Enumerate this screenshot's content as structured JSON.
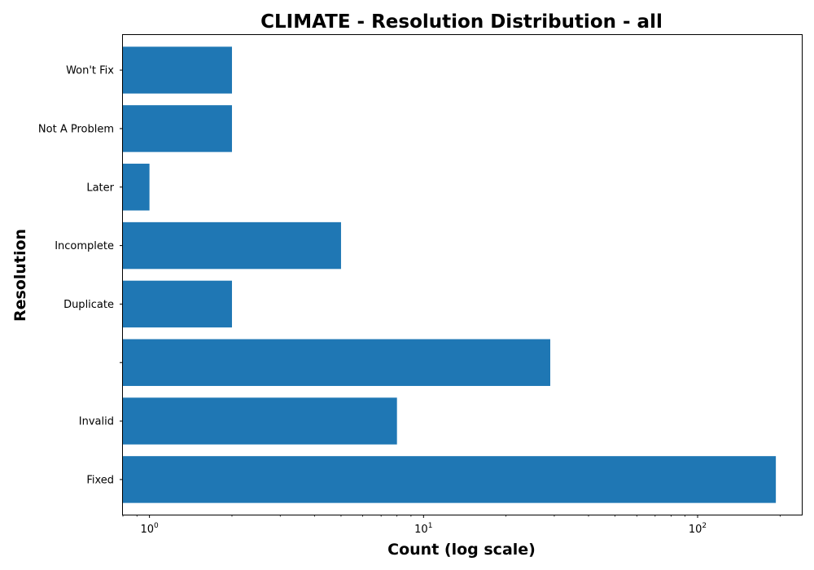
{
  "chart_data": {
    "type": "bar",
    "orientation": "horizontal",
    "title": "CLIMATE - Resolution Distribution - all",
    "xlabel": "Count (log scale)",
    "ylabel": "Resolution",
    "x_scale": "log",
    "xlim": [
      0.8,
      240
    ],
    "x_ticks": [
      {
        "value": 1,
        "base": "10",
        "exp": "0"
      },
      {
        "value": 10,
        "base": "10",
        "exp": "1"
      },
      {
        "value": 100,
        "base": "10",
        "exp": "2"
      }
    ],
    "categories": [
      "Fixed",
      "Invalid",
      "",
      "Duplicate",
      "Incomplete",
      "Later",
      "Not A Problem",
      "Won't Fix"
    ],
    "values": [
      193,
      8,
      29,
      2,
      5,
      1,
      2,
      2
    ],
    "bar_color": "#1f77b4",
    "grid": false,
    "legend": "none"
  }
}
